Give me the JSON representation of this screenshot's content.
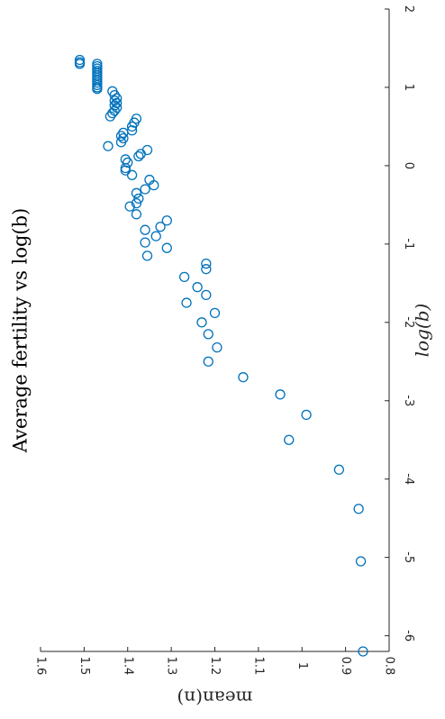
{
  "chart_data": {
    "type": "scatter",
    "title": "Average fertility vs log(b)",
    "xlabel": "log(b)",
    "ylabel": "mean(n)",
    "xlim": [
      -6.2,
      2
    ],
    "ylim": [
      0.8,
      1.6
    ],
    "xticks": [
      "-6",
      "-5",
      "-4",
      "-3",
      "-2",
      "-1",
      "0",
      "1",
      "2"
    ],
    "yticks": [
      "0.8",
      "0.9",
      "1",
      "1.1",
      "1.2",
      "1.3",
      "1.4",
      "1.5",
      "1.6"
    ],
    "grid": false,
    "rotation": "rotated 90 degrees clockwise",
    "marker_color": "#0072BD",
    "points": [
      [
        1.35,
        1.51
      ],
      [
        1.32,
        1.51
      ],
      [
        1.3,
        1.51
      ],
      [
        1.3,
        1.47
      ],
      [
        1.27,
        1.47
      ],
      [
        1.24,
        1.47
      ],
      [
        1.21,
        1.47
      ],
      [
        1.18,
        1.47
      ],
      [
        1.15,
        1.47
      ],
      [
        1.12,
        1.47
      ],
      [
        1.09,
        1.47
      ],
      [
        1.06,
        1.47
      ],
      [
        1.03,
        1.47
      ],
      [
        1.0,
        1.47
      ],
      [
        0.98,
        1.47
      ],
      [
        0.95,
        1.435
      ],
      [
        0.9,
        1.43
      ],
      [
        0.86,
        1.425
      ],
      [
        0.83,
        1.43
      ],
      [
        0.8,
        1.425
      ],
      [
        0.77,
        1.43
      ],
      [
        0.74,
        1.425
      ],
      [
        0.7,
        1.43
      ],
      [
        0.67,
        1.435
      ],
      [
        0.63,
        1.44
      ],
      [
        0.6,
        1.38
      ],
      [
        0.55,
        1.385
      ],
      [
        0.5,
        1.39
      ],
      [
        0.45,
        1.39
      ],
      [
        0.42,
        1.41
      ],
      [
        0.38,
        1.415
      ],
      [
        0.35,
        1.41
      ],
      [
        0.3,
        1.415
      ],
      [
        0.25,
        1.445
      ],
      [
        0.2,
        1.355
      ],
      [
        0.15,
        1.37
      ],
      [
        0.12,
        1.375
      ],
      [
        0.08,
        1.405
      ],
      [
        0.04,
        1.4
      ],
      [
        -0.03,
        1.405
      ],
      [
        -0.06,
        1.405
      ],
      [
        -0.12,
        1.39
      ],
      [
        -0.18,
        1.35
      ],
      [
        -0.25,
        1.34
      ],
      [
        -0.3,
        1.36
      ],
      [
        -0.35,
        1.38
      ],
      [
        -0.42,
        1.375
      ],
      [
        -0.48,
        1.38
      ],
      [
        -0.52,
        1.395
      ],
      [
        -0.62,
        1.38
      ],
      [
        -0.7,
        1.31
      ],
      [
        -0.78,
        1.325
      ],
      [
        -0.82,
        1.36
      ],
      [
        -0.9,
        1.335
      ],
      [
        -0.98,
        1.36
      ],
      [
        -1.05,
        1.31
      ],
      [
        -1.15,
        1.355
      ],
      [
        -1.25,
        1.22
      ],
      [
        -1.32,
        1.22
      ],
      [
        -1.42,
        1.27
      ],
      [
        -1.55,
        1.24
      ],
      [
        -1.65,
        1.22
      ],
      [
        -1.75,
        1.265
      ],
      [
        -1.88,
        1.2
      ],
      [
        -2.0,
        1.23
      ],
      [
        -2.15,
        1.215
      ],
      [
        -2.32,
        1.195
      ],
      [
        -2.5,
        1.215
      ],
      [
        -2.7,
        1.135
      ],
      [
        -2.92,
        1.05
      ],
      [
        -3.18,
        0.99
      ],
      [
        -3.5,
        1.03
      ],
      [
        -3.88,
        0.915
      ],
      [
        -4.38,
        0.87
      ],
      [
        -5.05,
        0.865
      ],
      [
        -6.2,
        0.86
      ]
    ]
  }
}
